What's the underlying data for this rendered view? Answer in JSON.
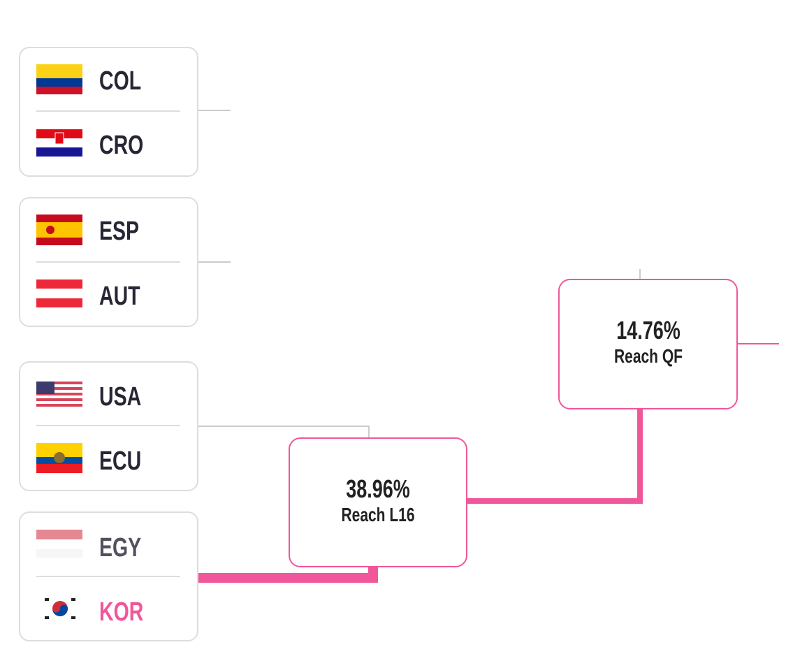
{
  "matches": [
    {
      "teams": [
        {
          "code": "COL"
        },
        {
          "code": "CRO"
        }
      ]
    },
    {
      "teams": [
        {
          "code": "ESP"
        },
        {
          "code": "AUT"
        }
      ]
    },
    {
      "teams": [
        {
          "code": "USA"
        },
        {
          "code": "ECU"
        }
      ]
    },
    {
      "teams": [
        {
          "code": "EGY"
        },
        {
          "code": "KOR"
        }
      ]
    }
  ],
  "nodes": [
    {
      "value": "38.96%",
      "label": "Reach L16"
    },
    {
      "value": "14.76%",
      "label": "Reach QF"
    }
  ]
}
